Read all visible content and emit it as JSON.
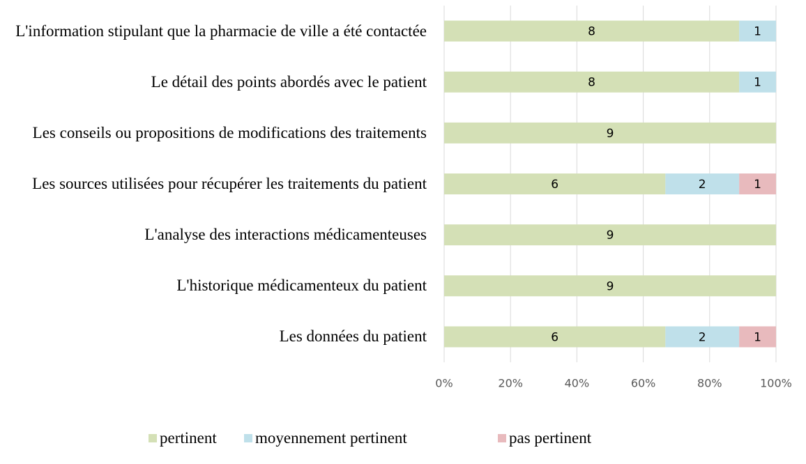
{
  "chart_data": {
    "type": "bar",
    "orientation": "horizontal",
    "stacked": "percent",
    "categories": [
      "L'information stipulant que la pharmacie de ville a été contactée",
      "Le détail des points abordés avec le patient",
      "Les conseils ou propositions de modifications des traitements",
      "Les sources utilisées pour récupérer les traitements du patient",
      "L'analyse des interactions médicamenteuses",
      "L'historique médicamenteux du patient",
      "Les données du patient"
    ],
    "series": [
      {
        "name": "pertinent",
        "color": "#d4e0b6",
        "values": [
          8,
          8,
          9,
          6,
          9,
          9,
          6
        ]
      },
      {
        "name": "moyennement pertinent",
        "color": "#bfe0ea",
        "values": [
          1,
          1,
          null,
          2,
          null,
          null,
          2
        ]
      },
      {
        "name": "pas pertinent",
        "color": "#e8babd",
        "values": [
          null,
          null,
          null,
          1,
          null,
          null,
          1
        ]
      }
    ],
    "xlim": [
      0,
      100
    ],
    "xticks": [
      {
        "value": 0,
        "label": "0%"
      },
      {
        "value": 20,
        "label": "20%"
      },
      {
        "value": 40,
        "label": "40%"
      },
      {
        "value": 60,
        "label": "60%"
      },
      {
        "value": 80,
        "label": "80%"
      },
      {
        "value": 100,
        "label": "100%"
      }
    ],
    "grid": true,
    "legend": "bottom"
  }
}
